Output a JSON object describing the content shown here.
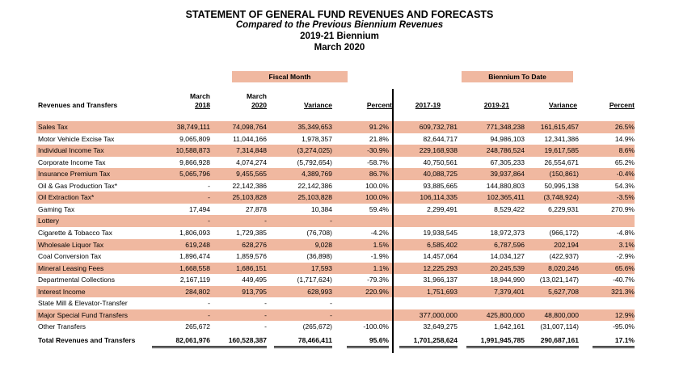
{
  "title": "STATEMENT OF GENERAL FUND REVENUES AND FORECASTS",
  "subtitle": "Compared to the Previous Biennium Revenues",
  "biennium": "2019-21 Biennium",
  "period": "March 2020",
  "groups": {
    "fiscal_month": "Fiscal Month",
    "biennium_to_date": "Biennium To Date"
  },
  "headers": {
    "revenues": "Revenues and Transfers",
    "march": "March",
    "year2018": "2018",
    "year2020": "2020",
    "variance": "Variance",
    "percent": "Percent",
    "bien1719": "2017-19",
    "bien1921": "2019-21"
  },
  "rows": [
    {
      "label": "Sales Tax",
      "c": [
        "38,749,111",
        "74,098,764",
        "35,349,653",
        "91.2%",
        "609,732,781",
        "771,348,238",
        "161,615,457",
        "26.5%"
      ]
    },
    {
      "label": "Motor Vehicle Excise Tax",
      "c": [
        "9,065,809",
        "11,044,166",
        "1,978,357",
        "21.8%",
        "82,644,717",
        "94,986,103",
        "12,341,386",
        "14.9%"
      ]
    },
    {
      "label": "Individual Income Tax",
      "c": [
        "10,588,873",
        "7,314,848",
        "(3,274,025)",
        "-30.9%",
        "229,168,938",
        "248,786,524",
        "19,617,585",
        "8.6%"
      ]
    },
    {
      "label": "Corporate Income Tax",
      "c": [
        "9,866,928",
        "4,074,274",
        "(5,792,654)",
        "-58.7%",
        "40,750,561",
        "67,305,233",
        "26,554,671",
        "65.2%"
      ]
    },
    {
      "label": "Insurance Premium Tax",
      "c": [
        "5,065,796",
        "9,455,565",
        "4,389,769",
        "86.7%",
        "40,088,725",
        "39,937,864",
        "(150,861)",
        "-0.4%"
      ]
    },
    {
      "label": "Oil & Gas Production Tax*",
      "c": [
        "-",
        "22,142,386",
        "22,142,386",
        "100.0%",
        "93,885,665",
        "144,880,803",
        "50,995,138",
        "54.3%"
      ]
    },
    {
      "label": "Oil Extraction Tax*",
      "c": [
        "-",
        "25,103,828",
        "25,103,828",
        "100.0%",
        "106,114,335",
        "102,365,411",
        "(3,748,924)",
        "-3.5%"
      ]
    },
    {
      "label": "Gaming Tax",
      "c": [
        "17,494",
        "27,878",
        "10,384",
        "59.4%",
        "2,299,491",
        "8,529,422",
        "6,229,931",
        "270.9%"
      ]
    },
    {
      "label": "Lottery",
      "c": [
        "-",
        "-",
        "-",
        "",
        "",
        "",
        "",
        ""
      ]
    },
    {
      "label": "Cigarette & Tobacco Tax",
      "c": [
        "1,806,093",
        "1,729,385",
        "(76,708)",
        "-4.2%",
        "19,938,545",
        "18,972,373",
        "(966,172)",
        "-4.8%"
      ]
    },
    {
      "label": "Wholesale Liquor Tax",
      "c": [
        "619,248",
        "628,276",
        "9,028",
        "1.5%",
        "6,585,402",
        "6,787,596",
        "202,194",
        "3.1%"
      ]
    },
    {
      "label": "Coal Conversion Tax",
      "c": [
        "1,896,474",
        "1,859,576",
        "(36,898)",
        "-1.9%",
        "14,457,064",
        "14,034,127",
        "(422,937)",
        "-2.9%"
      ]
    },
    {
      "label": "Mineral Leasing Fees",
      "c": [
        "1,668,558",
        "1,686,151",
        "17,593",
        "1.1%",
        "12,225,293",
        "20,245,539",
        "8,020,246",
        "65.6%"
      ]
    },
    {
      "label": "Departmental Collections",
      "c": [
        "2,167,119",
        "449,495",
        "(1,717,624)",
        "-79.3%",
        "31,966,137",
        "18,944,990",
        "(13,021,147)",
        "-40.7%"
      ]
    },
    {
      "label": "Interest Income",
      "c": [
        "284,802",
        "913,795",
        "628,993",
        "220.9%",
        "1,751,693",
        "7,379,401",
        "5,627,708",
        "321.3%"
      ]
    },
    {
      "label": "State Mill & Elevator-Transfer",
      "c": [
        "-",
        "-",
        "-",
        "",
        "",
        "",
        "",
        ""
      ]
    },
    {
      "label": "Major Special Fund Transfers",
      "c": [
        "-",
        "-",
        "-",
        "",
        "377,000,000",
        "425,800,000",
        "48,800,000",
        "12.9%"
      ]
    },
    {
      "label": "Other Transfers",
      "c": [
        "265,672",
        "-",
        "(265,672)",
        "-100.0%",
        "32,649,275",
        "1,642,161",
        "(31,007,114)",
        "-95.0%"
      ]
    }
  ],
  "total": {
    "label": "Total Revenues and Transfers",
    "c": [
      "82,061,976",
      "160,528,387",
      "78,466,411",
      "95.6%",
      "1,701,258,624",
      "1,991,945,785",
      "290,687,161",
      "17.1%"
    ]
  },
  "shade_color": "#f0b8a0"
}
